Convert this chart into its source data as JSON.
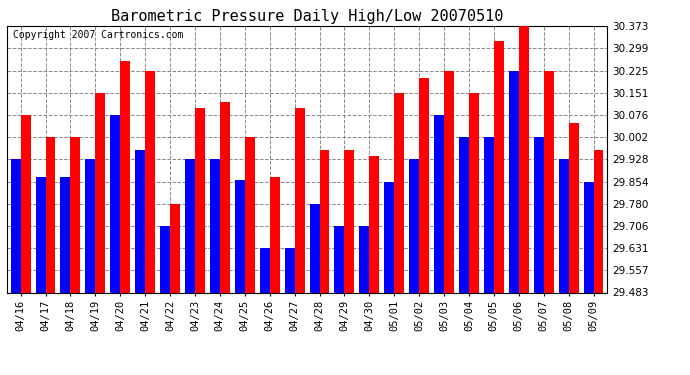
{
  "title": "Barometric Pressure Daily High/Low 20070510",
  "copyright": "Copyright 2007 Cartronics.com",
  "categories": [
    "04/16",
    "04/17",
    "04/18",
    "04/19",
    "04/20",
    "04/21",
    "04/22",
    "04/23",
    "04/24",
    "04/25",
    "04/26",
    "04/27",
    "04/28",
    "04/29",
    "04/30",
    "05/01",
    "05/02",
    "05/03",
    "05/04",
    "05/05",
    "05/06",
    "05/07",
    "05/08",
    "05/09"
  ],
  "highs": [
    30.076,
    30.002,
    30.002,
    30.151,
    30.258,
    30.225,
    29.78,
    30.1,
    30.12,
    30.002,
    29.87,
    30.1,
    29.96,
    29.96,
    29.94,
    30.151,
    30.2,
    30.225,
    30.151,
    30.325,
    30.373,
    30.225,
    30.05,
    29.96
  ],
  "lows": [
    29.928,
    29.87,
    29.87,
    29.928,
    30.076,
    29.96,
    29.706,
    29.928,
    29.928,
    29.86,
    29.631,
    29.631,
    29.78,
    29.706,
    29.706,
    29.854,
    29.928,
    30.076,
    30.002,
    30.002,
    30.225,
    30.002,
    29.928,
    29.854
  ],
  "high_color": "#ff0000",
  "low_color": "#0000ff",
  "bg_color": "#ffffff",
  "plot_bg_color": "#ffffff",
  "grid_color": "#888888",
  "yticks": [
    29.483,
    29.557,
    29.631,
    29.706,
    29.78,
    29.854,
    29.928,
    30.002,
    30.076,
    30.151,
    30.225,
    30.299,
    30.373
  ],
  "ymin": 29.483,
  "ymax": 30.373,
  "title_fontsize": 11,
  "copyright_fontsize": 7,
  "tick_fontsize": 7.5,
  "bar_width": 0.4
}
